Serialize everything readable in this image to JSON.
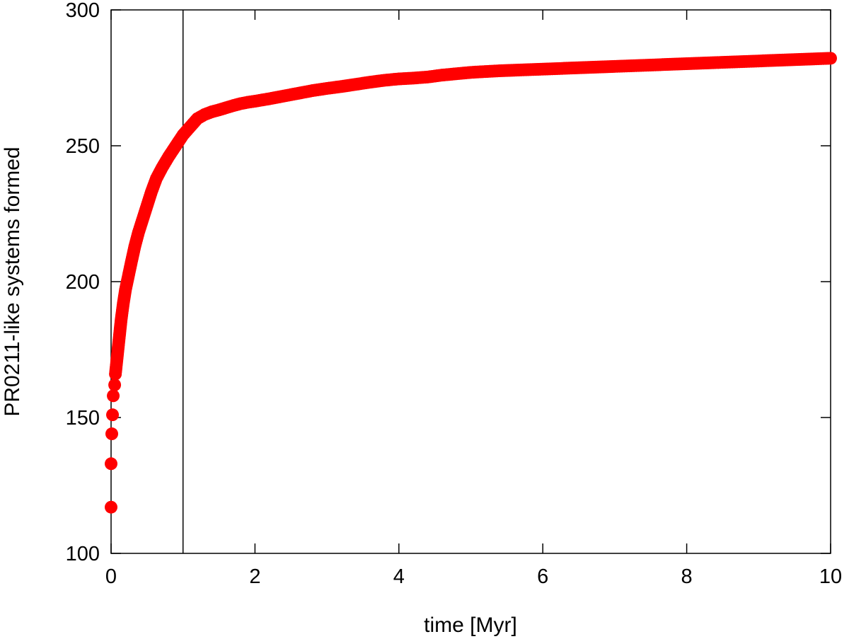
{
  "chart_data": {
    "type": "scatter",
    "title": "",
    "xlabel": "time [Myr]",
    "ylabel": "PR0211-like systems formed",
    "xlim": [
      0,
      10
    ],
    "ylim": [
      100,
      300
    ],
    "xticks": [
      0,
      2,
      4,
      6,
      8,
      10
    ],
    "yticks": [
      100,
      150,
      200,
      250,
      300
    ],
    "grid": false,
    "legend": "none",
    "marker_color": "#ff0000",
    "reference_line_x": 1,
    "series": [
      {
        "name": "",
        "points": [
          [
            0.0,
            117
          ],
          [
            0.0,
            133
          ],
          [
            0.01,
            144
          ],
          [
            0.02,
            151
          ],
          [
            0.03,
            158
          ],
          [
            0.05,
            162
          ],
          [
            0.06,
            166
          ],
          [
            0.08,
            171
          ],
          [
            0.1,
            176
          ],
          [
            0.12,
            181
          ],
          [
            0.14,
            186
          ],
          [
            0.17,
            192
          ],
          [
            0.2,
            197
          ],
          [
            0.24,
            202
          ],
          [
            0.28,
            207
          ],
          [
            0.33,
            213
          ],
          [
            0.38,
            218
          ],
          [
            0.44,
            223
          ],
          [
            0.5,
            228
          ],
          [
            0.56,
            233
          ],
          [
            0.63,
            238
          ],
          [
            0.71,
            242
          ],
          [
            0.8,
            246
          ],
          [
            0.9,
            250
          ],
          [
            1.0,
            254
          ],
          [
            1.1,
            257
          ],
          [
            1.2,
            260
          ],
          [
            1.3,
            261.5
          ],
          [
            1.4,
            262.5
          ],
          [
            1.5,
            263.2
          ],
          [
            1.6,
            264
          ],
          [
            1.7,
            264.8
          ],
          [
            1.8,
            265.5
          ],
          [
            1.9,
            266
          ],
          [
            2.0,
            266.4
          ],
          [
            2.2,
            267.3
          ],
          [
            2.4,
            268.3
          ],
          [
            2.6,
            269.3
          ],
          [
            2.8,
            270.3
          ],
          [
            3.0,
            271.1
          ],
          [
            3.2,
            271.8
          ],
          [
            3.4,
            272.6
          ],
          [
            3.6,
            273.4
          ],
          [
            3.8,
            274.1
          ],
          [
            4.0,
            274.6
          ],
          [
            4.2,
            274.9
          ],
          [
            4.4,
            275.3
          ],
          [
            4.6,
            276
          ],
          [
            4.8,
            276.5
          ],
          [
            5.0,
            277
          ],
          [
            5.2,
            277.3
          ],
          [
            5.4,
            277.6
          ],
          [
            5.6,
            277.8
          ],
          [
            5.8,
            278
          ],
          [
            6.0,
            278.2
          ],
          [
            6.2,
            278.4
          ],
          [
            6.4,
            278.6
          ],
          [
            6.6,
            278.8
          ],
          [
            6.8,
            279
          ],
          [
            7.0,
            279.2
          ],
          [
            7.2,
            279.4
          ],
          [
            7.4,
            279.6
          ],
          [
            7.6,
            279.8
          ],
          [
            7.8,
            280
          ],
          [
            8.0,
            280.2
          ],
          [
            8.2,
            280.4
          ],
          [
            8.4,
            280.6
          ],
          [
            8.6,
            280.8
          ],
          [
            8.8,
            281
          ],
          [
            9.0,
            281.2
          ],
          [
            9.2,
            281.4
          ],
          [
            9.4,
            281.6
          ],
          [
            9.6,
            281.8
          ],
          [
            9.8,
            282
          ],
          [
            10.0,
            282.2
          ]
        ]
      }
    ]
  }
}
